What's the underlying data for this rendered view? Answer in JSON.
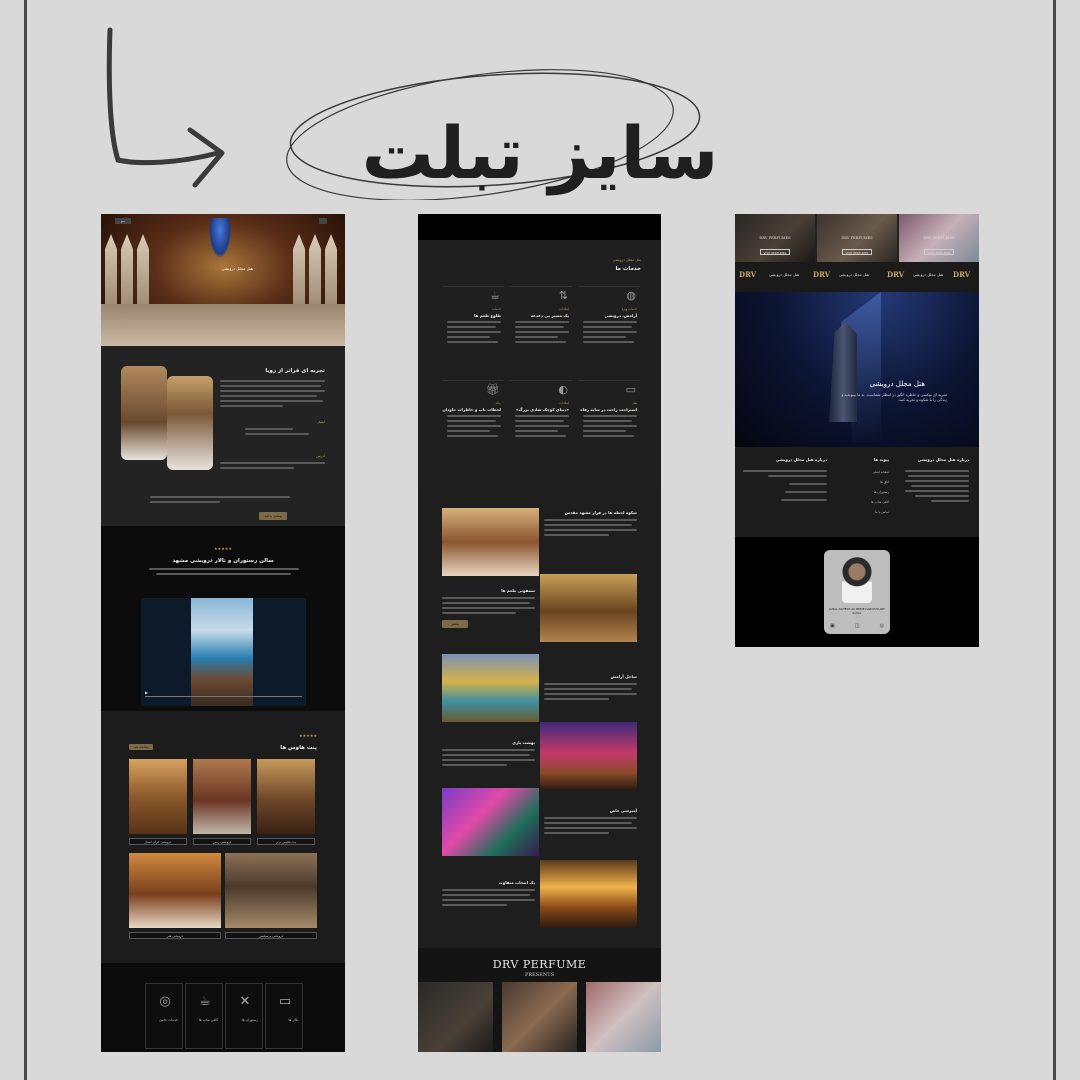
{
  "heading": "سایز تبلت",
  "panel1": {
    "hero": {
      "btn_left": "منو",
      "caption": "هتل مجلل درویشی"
    },
    "intro": {
      "title": "تجربه ای فراتر از رویا",
      "contact_email_label": "ایمیل",
      "address_label": "آدرس",
      "button": "بیشتر بدانید"
    },
    "video_section": {
      "stars": "★★★★★",
      "title": "سالن رستوران و تالار درویشی مشهد"
    },
    "rooms": {
      "stars": "★★★★★",
      "title": "پنت هاوس ها",
      "tag": "مشاهده همه",
      "labels": [
        "درویشی ایران استار",
        "درویشی زمین",
        "پنت هاوس برتر",
        "درویشی هنر",
        "درویشی پرسپلیس"
      ]
    },
    "services": [
      "خدمات جانبی",
      "کافی شاپ ها",
      "رستوران ها",
      "تالار ها"
    ]
  },
  "panel2": {
    "section_sub": "هتل مجلل درویشی",
    "section_title": "خدمات ما",
    "cards": [
      {
        "sub": "خدمات",
        "title": "طلوع طعم ها"
      },
      {
        "sub": "امکانات",
        "title": "یک مسیر بی دغدغه"
      },
      {
        "sub": "خدمات ویژه",
        "title": "آرامش، درویشی"
      },
      {
        "sub": "رفاه",
        "title": "لحظات ناب و خاطرات جاودان"
      },
      {
        "sub": "امکانات",
        "title": "«دنیای کوچک شادی بزرگ»"
      },
      {
        "sub": "هتل",
        "title": "استراحت راحت در سایه رفاه"
      }
    ],
    "gallery": [
      {
        "title": "شکوه لحظه ها در فراز مشهد مقدس"
      },
      {
        "title": "سمفونی طعم ها"
      },
      {
        "title": "ساحل آرامش"
      },
      {
        "title": "بهشت بازی"
      },
      {
        "title": "آمیزشی خاص"
      },
      {
        "title": "یک انتخاب متفاوت"
      }
    ],
    "gallery_button": "بیشتر",
    "perfume_title": "DRV PERFUME",
    "perfume_sub": "PRESENTS"
  },
  "panel3": {
    "strip": [
      {
        "label": "DRV PERFUMES",
        "btn": "VISIT PERFUMES"
      },
      {
        "label": "DRV PERFUMES",
        "btn": "VISIT PERFUMES"
      },
      {
        "label": "DRV PERFUMES",
        "btn": "VISIT PERFUMES"
      }
    ],
    "nav": [
      "هتل مجلل درویشی",
      "هتل مجلل درویشی",
      "هتل مجلل درویشی",
      "هتل مجلل درویشی"
    ],
    "logo": "DRV",
    "hero_title": "هتل مجلل درویشی",
    "hero_sub": "تجربه ای نوکسی و خاطره انگیز در انتظار شماست. به ما بپیوندید و زندگی را با شکوه و تجربه کنید.",
    "footer": {
      "col1_title": "درباره هتل مجلل درویشی",
      "col2_title": "پیوند ها",
      "col3_title": "درباره هتل مجلل درویشی",
      "links": [
        "صفحه اصلی",
        "اتاق ها",
        "رستوران ها",
        "کافی شاپ ها",
        "تماس با ما"
      ]
    },
    "profile_name": "JAMAL DAHESH AS PRIME DARVISHI ART ROYAL"
  }
}
